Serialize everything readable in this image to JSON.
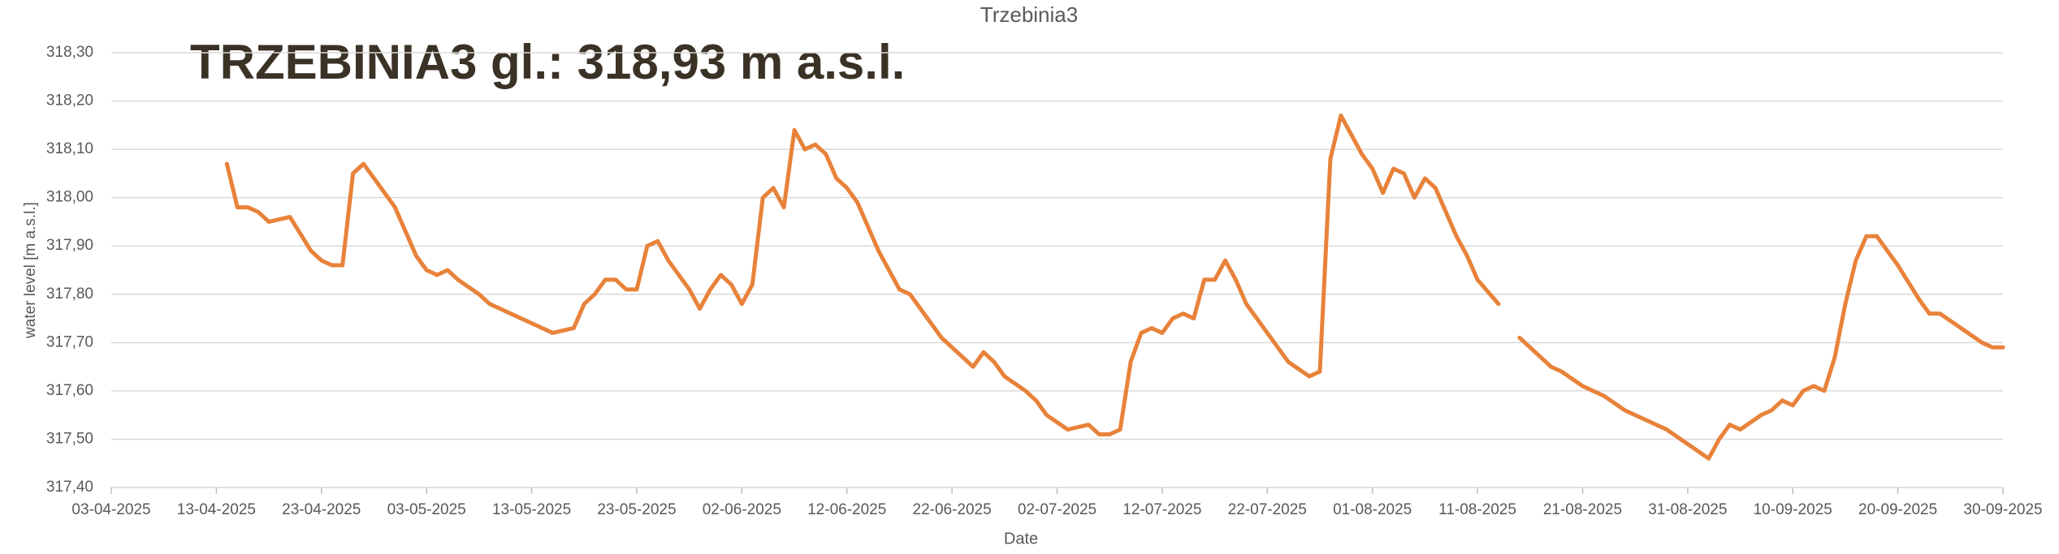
{
  "chart_data": {
    "type": "line",
    "title": "Trzebinia3",
    "annotations": [
      "TRZEBINIA3 gl.: 318,93 m a.s.l."
    ],
    "x_label": "Date",
    "y_label": "water level [m a.s.l.]",
    "color": "#e8823a",
    "grid": true,
    "x": [
      "14-04-2025",
      "15-04-2025",
      "16-04-2025",
      "17-04-2025",
      "18-04-2025",
      "20-04-2025",
      "22-04-2025",
      "23-04-2025",
      "24-04-2025",
      "25-04-2025",
      "26-04-2025",
      "27-04-2025",
      "28-04-2025",
      "30-04-2025",
      "01-05-2025",
      "02-05-2025",
      "03-05-2025",
      "04-05-2025",
      "05-05-2025",
      "06-05-2025",
      "08-05-2025",
      "09-05-2025",
      "10-05-2025",
      "11-05-2025",
      "13-05-2025",
      "15-05-2025",
      "17-05-2025",
      "18-05-2025",
      "19-05-2025",
      "20-05-2025",
      "21-05-2025",
      "22-05-2025",
      "23-05-2025",
      "24-05-2025",
      "25-05-2025",
      "26-05-2025",
      "27-05-2025",
      "28-05-2025",
      "29-05-2025",
      "30-05-2025",
      "31-05-2025",
      "01-06-2025",
      "02-06-2025",
      "03-06-2025",
      "04-06-2025",
      "05-06-2025",
      "06-06-2025",
      "07-06-2025",
      "08-06-2025",
      "09-06-2025",
      "10-06-2025",
      "11-06-2025",
      "12-06-2025",
      "13-06-2025",
      "14-06-2025",
      "15-06-2025",
      "16-06-2025",
      "17-06-2025",
      "18-06-2025",
      "19-06-2025",
      "21-06-2025",
      "23-06-2025",
      "24-06-2025",
      "25-06-2025",
      "26-06-2025",
      "27-06-2025",
      "29-06-2025",
      "30-06-2025",
      "01-07-2025",
      "03-07-2025",
      "05-07-2025",
      "06-07-2025",
      "07-07-2025",
      "08-07-2025",
      "09-07-2025",
      "10-07-2025",
      "11-07-2025",
      "12-07-2025",
      "13-07-2025",
      "14-07-2025",
      "15-07-2025",
      "16-07-2025",
      "17-07-2025",
      "18-07-2025",
      "19-07-2025",
      "20-07-2025",
      "21-07-2025",
      "22-07-2025",
      "23-07-2025",
      "24-07-2025",
      "26-07-2025",
      "27-07-2025",
      "28-07-2025",
      "29-07-2025",
      "30-07-2025",
      "31-07-2025",
      "01-08-2025",
      "02-08-2025",
      "03-08-2025",
      "04-08-2025",
      "05-08-2025",
      "06-08-2025",
      "07-08-2025",
      "08-08-2025",
      "09-08-2025",
      "10-08-2025",
      "11-08-2025",
      "13-08-2025",
      "14-08-2025",
      "15-08-2025",
      "17-08-2025",
      "18-08-2025",
      "19-08-2025",
      "21-08-2025",
      "23-08-2025",
      "25-08-2025",
      "27-08-2025",
      "29-08-2025",
      "31-08-2025",
      "02-09-2025",
      "03-09-2025",
      "04-09-2025",
      "05-09-2025",
      "07-09-2025",
      "08-09-2025",
      "09-09-2025",
      "10-09-2025",
      "11-09-2025",
      "12-09-2025",
      "13-09-2025",
      "14-09-2025",
      "15-09-2025",
      "16-09-2025",
      "17-09-2025",
      "18-09-2025",
      "20-09-2025",
      "22-09-2025",
      "23-09-2025",
      "24-09-2025",
      "26-09-2025",
      "28-09-2025",
      "29-09-2025",
      "30-09-2025"
    ],
    "values": [
      318.07,
      317.98,
      317.98,
      317.97,
      317.95,
      317.96,
      317.89,
      317.87,
      317.86,
      317.86,
      318.05,
      318.07,
      318.04,
      317.98,
      317.93,
      317.88,
      317.85,
      317.84,
      317.85,
      317.83,
      317.8,
      317.78,
      317.77,
      317.76,
      317.74,
      317.72,
      317.73,
      317.78,
      317.8,
      317.83,
      317.83,
      317.81,
      317.81,
      317.9,
      317.91,
      317.87,
      317.84,
      317.81,
      317.77,
      317.81,
      317.84,
      317.82,
      317.78,
      317.82,
      318.0,
      318.02,
      317.98,
      318.14,
      318.1,
      318.11,
      318.09,
      318.04,
      318.02,
      317.99,
      317.94,
      317.89,
      317.85,
      317.81,
      317.8,
      317.77,
      317.71,
      317.67,
      317.65,
      317.68,
      317.66,
      317.63,
      317.6,
      317.58,
      317.55,
      317.52,
      317.53,
      317.51,
      317.51,
      317.52,
      317.66,
      317.72,
      317.73,
      317.72,
      317.75,
      317.76,
      317.75,
      317.83,
      317.83,
      317.87,
      317.83,
      317.78,
      317.75,
      317.72,
      317.69,
      317.66,
      317.63,
      317.64,
      318.08,
      318.17,
      318.13,
      318.09,
      318.06,
      318.01,
      318.06,
      318.05,
      318.0,
      318.04,
      318.02,
      317.97,
      317.92,
      317.88,
      317.83,
      317.78,
      null,
      317.71,
      317.67,
      317.65,
      317.64,
      317.61,
      317.59,
      317.56,
      317.54,
      317.52,
      317.49,
      317.46,
      317.5,
      317.53,
      317.52,
      317.55,
      317.56,
      317.58,
      317.57,
      317.6,
      317.61,
      317.6,
      317.67,
      317.78,
      317.87,
      317.92,
      317.92,
      317.86,
      317.79,
      317.76,
      317.76,
      317.73,
      317.7,
      317.69,
      317.69
    ],
    "xlim": [
      "03-04-2025",
      "30-09-2025"
    ],
    "xticks": [
      "03-04-2025",
      "13-04-2025",
      "23-04-2025",
      "03-05-2025",
      "13-05-2025",
      "23-05-2025",
      "02-06-2025",
      "12-06-2025",
      "22-06-2025",
      "02-07-2025",
      "12-07-2025",
      "22-07-2025",
      "01-08-2025",
      "11-08-2025",
      "21-08-2025",
      "31-08-2025",
      "10-09-2025",
      "20-09-2025",
      "30-09-2025"
    ],
    "ylim": [
      317.4,
      318.3
    ],
    "yticks": [
      {
        "value": 317.4,
        "label": "317,40"
      },
      {
        "value": 317.5,
        "label": "317,50"
      },
      {
        "value": 317.6,
        "label": "317,60"
      },
      {
        "value": 317.7,
        "label": "317,70"
      },
      {
        "value": 317.8,
        "label": "317,80"
      },
      {
        "value": 317.9,
        "label": "317,90"
      },
      {
        "value": 318.0,
        "label": "318,00"
      },
      {
        "value": 318.1,
        "label": "318,10"
      },
      {
        "value": 318.2,
        "label": "318,20"
      },
      {
        "value": 318.3,
        "label": "318,30"
      }
    ]
  }
}
